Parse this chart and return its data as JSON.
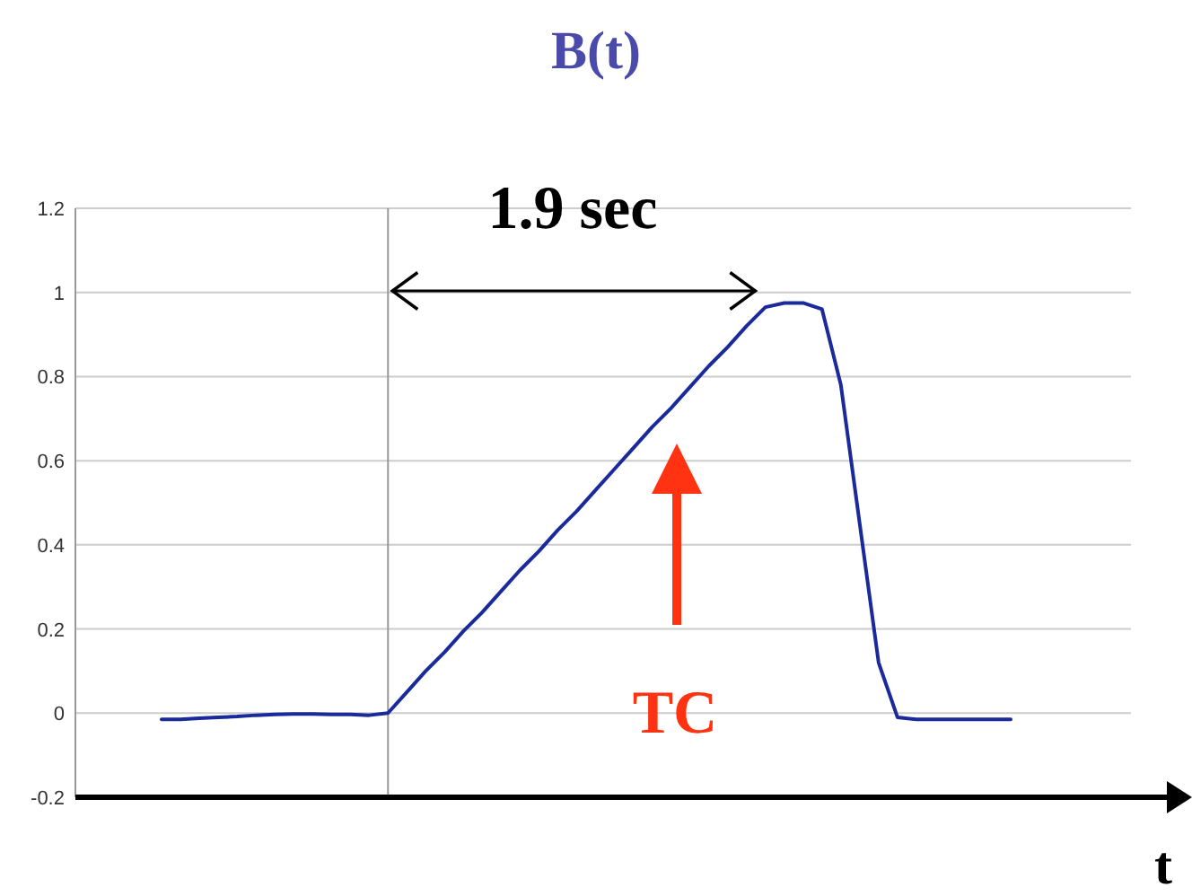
{
  "chart_data": {
    "type": "line",
    "title": "B(t)",
    "xlabel": "t",
    "categories": [
      null,
      null,
      null,
      null,
      null,
      null,
      null,
      null,
      null,
      null,
      null,
      null,
      null,
      null,
      null,
      null,
      null,
      null,
      null,
      null,
      null,
      null,
      null,
      null,
      null,
      null,
      null,
      null,
      null,
      null,
      null,
      null,
      null,
      null,
      null,
      null,
      null,
      null,
      null,
      null,
      null,
      null,
      null,
      null,
      null,
      null
    ],
    "series": [
      {
        "color": "#1a2a9a",
        "values": [
          -0.015,
          -0.015,
          -0.012,
          -0.01,
          -0.008,
          -0.005,
          -0.003,
          -0.002,
          -0.002,
          -0.003,
          -0.003,
          -0.005,
          0,
          0.05,
          0.1,
          0.145,
          0.195,
          0.24,
          0.29,
          0.34,
          0.385,
          0.435,
          0.48,
          0.53,
          0.58,
          0.63,
          0.68,
          0.725,
          0.775,
          0.825,
          0.87,
          0.92,
          0.965,
          0.975,
          0.975,
          0.96,
          0.78,
          0.45,
          0.12,
          -0.01,
          -0.015,
          -0.015,
          -0.015,
          -0.015,
          -0.015,
          -0.015
        ]
      }
    ],
    "ylim": [
      -0.2,
      1.2
    ],
    "yticks": [
      -0.2,
      0,
      0.2,
      0.4,
      0.6,
      0.8,
      1,
      1.2
    ],
    "grid": "y",
    "line_style": "solid",
    "annotations": [
      "1.9 sec",
      "TC"
    ]
  }
}
